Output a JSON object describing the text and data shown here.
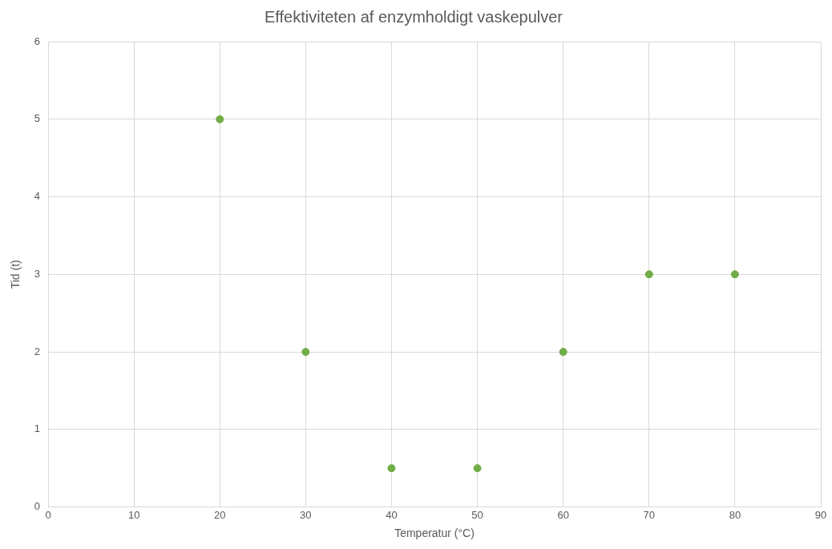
{
  "chart_data": {
    "type": "scatter",
    "title": "Effektiviteten af enzymholdigt vaskepulver",
    "xlabel": "Temperatur (°C)",
    "ylabel": "Tid (t)",
    "x": [
      20,
      30,
      40,
      50,
      60,
      70,
      80
    ],
    "values": [
      5,
      2,
      0.5,
      0.5,
      2,
      3,
      3
    ],
    "color": "#70ad47",
    "xlim": [
      0,
      90
    ],
    "xticks": [
      0,
      10,
      20,
      30,
      40,
      50,
      60,
      70,
      80,
      90
    ],
    "ylim": [
      0,
      6
    ],
    "yticks": [
      0,
      1,
      2,
      3,
      4,
      5,
      6
    ],
    "grid": true,
    "legend": false,
    "marker": "circle"
  }
}
